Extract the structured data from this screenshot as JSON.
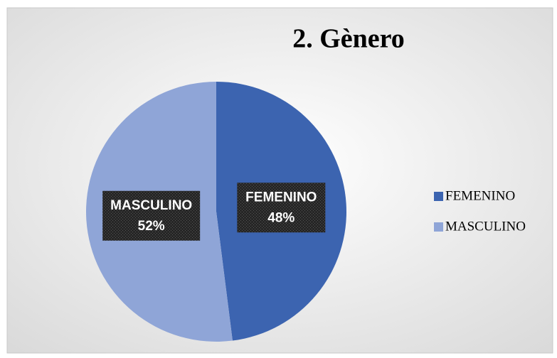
{
  "chart_data": {
    "type": "pie",
    "title": "2. Gènero",
    "categories": [
      "FEMENINO",
      "MASCULINO"
    ],
    "values": [
      48,
      52
    ],
    "value_labels": [
      "48%",
      "52%"
    ],
    "colors": [
      "#3c64b0",
      "#8fa5d7"
    ],
    "legend": "right"
  }
}
